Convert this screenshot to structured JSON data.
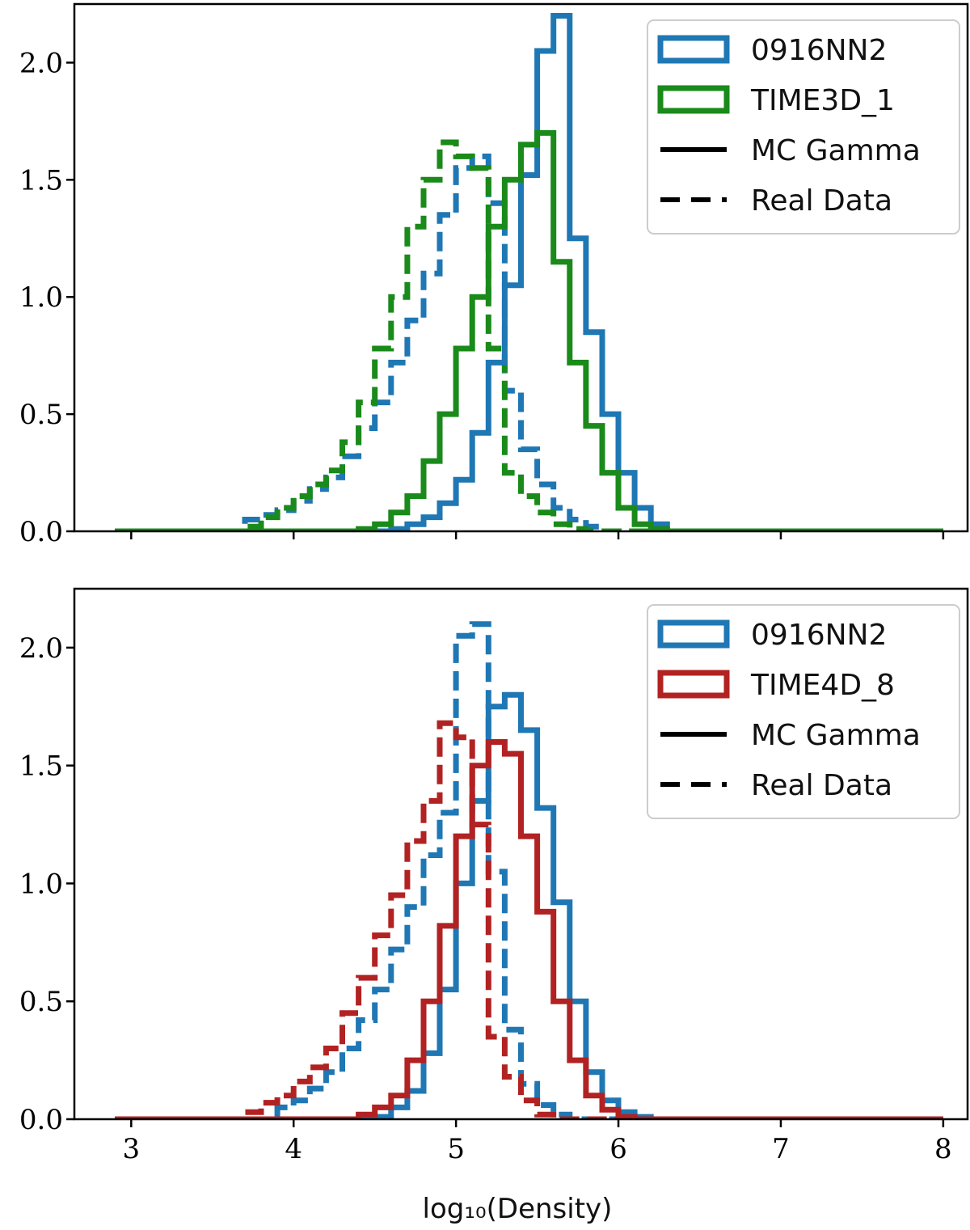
{
  "chart_data": [
    {
      "type": "histogram-step",
      "panel": "top",
      "xlim": [
        2.65,
        8.15
      ],
      "ylim": [
        0,
        2.25
      ],
      "xticks": [
        3,
        4,
        5,
        6,
        7,
        8
      ],
      "yticks": [
        0.0,
        0.5,
        1.0,
        1.5,
        2.0
      ],
      "ytick_labels": [
        "0.0",
        "0.5",
        "1.0",
        "1.5",
        "2.0"
      ],
      "show_xtick_labels": false,
      "bin_width": 0.1,
      "legend": {
        "position": "top-right",
        "entries": [
          {
            "label": "0916NN2",
            "kind": "patch",
            "color": "#1f77b4"
          },
          {
            "label": "TIME3D_1",
            "kind": "patch",
            "color": "#1a8a1a"
          },
          {
            "label": "MC Gamma",
            "kind": "solid-line",
            "color": "#000000"
          },
          {
            "label": "Real Data",
            "kind": "dashed-line",
            "color": "#000000"
          }
        ]
      },
      "series": [
        {
          "name": "0916NN2 Real Data",
          "color": "#1f77b4",
          "style": "dashed",
          "bins": [
            [
              3.7,
              0.05
            ],
            [
              3.8,
              0.07
            ],
            [
              3.9,
              0.09
            ],
            [
              4.0,
              0.13
            ],
            [
              4.1,
              0.18
            ],
            [
              4.2,
              0.23
            ],
            [
              4.3,
              0.32
            ],
            [
              4.4,
              0.44
            ],
            [
              4.5,
              0.55
            ],
            [
              4.6,
              0.72
            ],
            [
              4.7,
              0.9
            ],
            [
              4.8,
              1.1
            ],
            [
              4.9,
              1.35
            ],
            [
              5.0,
              1.55
            ],
            [
              5.1,
              1.6
            ],
            [
              5.2,
              1.4
            ],
            [
              5.3,
              0.6
            ],
            [
              5.4,
              0.35
            ],
            [
              5.5,
              0.2
            ],
            [
              5.6,
              0.1
            ],
            [
              5.7,
              0.05
            ],
            [
              5.8,
              0.02
            ]
          ]
        },
        {
          "name": "TIME3D_1 Real Data",
          "color": "#1a8a1a",
          "style": "dashed",
          "bins": [
            [
              3.7,
              0.02
            ],
            [
              3.8,
              0.06
            ],
            [
              3.9,
              0.1
            ],
            [
              4.0,
              0.15
            ],
            [
              4.1,
              0.2
            ],
            [
              4.2,
              0.26
            ],
            [
              4.3,
              0.38
            ],
            [
              4.4,
              0.55
            ],
            [
              4.5,
              0.78
            ],
            [
              4.6,
              1.0
            ],
            [
              4.7,
              1.3
            ],
            [
              4.8,
              1.5
            ],
            [
              4.9,
              1.66
            ],
            [
              5.0,
              1.6
            ],
            [
              5.1,
              1.55
            ],
            [
              5.2,
              0.78
            ],
            [
              5.3,
              0.25
            ],
            [
              5.4,
              0.15
            ],
            [
              5.5,
              0.08
            ],
            [
              5.6,
              0.03
            ],
            [
              5.7,
              0.01
            ]
          ]
        },
        {
          "name": "0916NN2 MC Gamma",
          "color": "#1f77b4",
          "style": "solid",
          "bins": [
            [
              4.6,
              0.01
            ],
            [
              4.7,
              0.03
            ],
            [
              4.8,
              0.06
            ],
            [
              4.9,
              0.12
            ],
            [
              5.0,
              0.22
            ],
            [
              5.1,
              0.42
            ],
            [
              5.2,
              0.72
            ],
            [
              5.3,
              1.05
            ],
            [
              5.4,
              1.52
            ],
            [
              5.5,
              2.05
            ],
            [
              5.6,
              2.2
            ],
            [
              5.7,
              1.25
            ],
            [
              5.8,
              0.85
            ],
            [
              5.9,
              0.5
            ],
            [
              6.0,
              0.25
            ],
            [
              6.1,
              0.1
            ],
            [
              6.2,
              0.03
            ]
          ]
        },
        {
          "name": "TIME3D_1 MC Gamma",
          "color": "#1a8a1a",
          "style": "solid",
          "bins": [
            [
              4.4,
              0.01
            ],
            [
              4.5,
              0.03
            ],
            [
              4.6,
              0.08
            ],
            [
              4.7,
              0.15
            ],
            [
              4.8,
              0.3
            ],
            [
              4.9,
              0.5
            ],
            [
              5.0,
              0.78
            ],
            [
              5.1,
              1.0
            ],
            [
              5.2,
              1.3
            ],
            [
              5.3,
              1.5
            ],
            [
              5.4,
              1.65
            ],
            [
              5.5,
              1.7
            ],
            [
              5.6,
              1.15
            ],
            [
              5.7,
              0.72
            ],
            [
              5.8,
              0.45
            ],
            [
              5.9,
              0.25
            ],
            [
              6.0,
              0.1
            ],
            [
              6.1,
              0.03
            ],
            [
              6.2,
              0.01
            ]
          ]
        }
      ]
    },
    {
      "type": "histogram-step",
      "panel": "bottom",
      "xlim": [
        2.65,
        8.15
      ],
      "ylim": [
        0,
        2.25
      ],
      "xticks": [
        3,
        4,
        5,
        6,
        7,
        8
      ],
      "xtick_labels": [
        "3",
        "4",
        "5",
        "6",
        "7",
        "8"
      ],
      "yticks": [
        0.0,
        0.5,
        1.0,
        1.5,
        2.0
      ],
      "ytick_labels": [
        "0.0",
        "0.5",
        "1.0",
        "1.5",
        "2.0"
      ],
      "xlabel": "log₁₀(Density)",
      "bin_width": 0.1,
      "legend": {
        "position": "top-right",
        "entries": [
          {
            "label": "0916NN2",
            "kind": "patch",
            "color": "#1f77b4"
          },
          {
            "label": "TIME4D_8",
            "kind": "patch",
            "color": "#b22222"
          },
          {
            "label": "MC Gamma",
            "kind": "solid-line",
            "color": "#000000"
          },
          {
            "label": "Real Data",
            "kind": "dashed-line",
            "color": "#000000"
          }
        ]
      },
      "series": [
        {
          "name": "0916NN2 Real Data",
          "color": "#1f77b4",
          "style": "dashed",
          "bins": [
            [
              3.9,
              0.05
            ],
            [
              4.0,
              0.08
            ],
            [
              4.1,
              0.13
            ],
            [
              4.2,
              0.2
            ],
            [
              4.3,
              0.3
            ],
            [
              4.4,
              0.42
            ],
            [
              4.5,
              0.55
            ],
            [
              4.6,
              0.72
            ],
            [
              4.7,
              0.9
            ],
            [
              4.8,
              1.12
            ],
            [
              4.9,
              1.3
            ],
            [
              5.0,
              2.05
            ],
            [
              5.1,
              2.1
            ],
            [
              5.2,
              1.05
            ],
            [
              5.3,
              0.38
            ],
            [
              5.4,
              0.15
            ],
            [
              5.5,
              0.06
            ],
            [
              5.6,
              0.02
            ]
          ]
        },
        {
          "name": "TIME4D_8 Real Data",
          "color": "#b22222",
          "style": "dashed",
          "bins": [
            [
              3.7,
              0.03
            ],
            [
              3.8,
              0.07
            ],
            [
              3.9,
              0.1
            ],
            [
              4.0,
              0.16
            ],
            [
              4.1,
              0.22
            ],
            [
              4.2,
              0.3
            ],
            [
              4.3,
              0.45
            ],
            [
              4.4,
              0.6
            ],
            [
              4.5,
              0.78
            ],
            [
              4.6,
              0.95
            ],
            [
              4.7,
              1.18
            ],
            [
              4.8,
              1.35
            ],
            [
              4.9,
              1.68
            ],
            [
              5.0,
              1.62
            ],
            [
              5.1,
              1.25
            ],
            [
              5.2,
              0.35
            ],
            [
              5.3,
              0.18
            ],
            [
              5.4,
              0.08
            ],
            [
              5.5,
              0.02
            ]
          ]
        },
        {
          "name": "0916NN2 MC Gamma",
          "color": "#1f77b4",
          "style": "solid",
          "bins": [
            [
              4.5,
              0.01
            ],
            [
              4.6,
              0.05
            ],
            [
              4.7,
              0.12
            ],
            [
              4.8,
              0.28
            ],
            [
              4.9,
              0.55
            ],
            [
              5.0,
              1.0
            ],
            [
              5.1,
              1.35
            ],
            [
              5.2,
              1.75
            ],
            [
              5.3,
              1.8
            ],
            [
              5.4,
              1.65
            ],
            [
              5.5,
              1.32
            ],
            [
              5.6,
              0.92
            ],
            [
              5.7,
              0.5
            ],
            [
              5.8,
              0.2
            ],
            [
              5.9,
              0.08
            ],
            [
              6.0,
              0.03
            ],
            [
              6.1,
              0.01
            ]
          ]
        },
        {
          "name": "TIME4D_8 MC Gamma",
          "color": "#b22222",
          "style": "solid",
          "bins": [
            [
              4.4,
              0.02
            ],
            [
              4.5,
              0.05
            ],
            [
              4.6,
              0.1
            ],
            [
              4.7,
              0.25
            ],
            [
              4.8,
              0.5
            ],
            [
              4.9,
              0.82
            ],
            [
              5.0,
              1.2
            ],
            [
              5.1,
              1.5
            ],
            [
              5.2,
              1.6
            ],
            [
              5.3,
              1.55
            ],
            [
              5.4,
              1.2
            ],
            [
              5.5,
              0.88
            ],
            [
              5.6,
              0.5
            ],
            [
              5.7,
              0.25
            ],
            [
              5.8,
              0.1
            ],
            [
              5.9,
              0.04
            ],
            [
              6.0,
              0.01
            ]
          ]
        }
      ]
    }
  ]
}
